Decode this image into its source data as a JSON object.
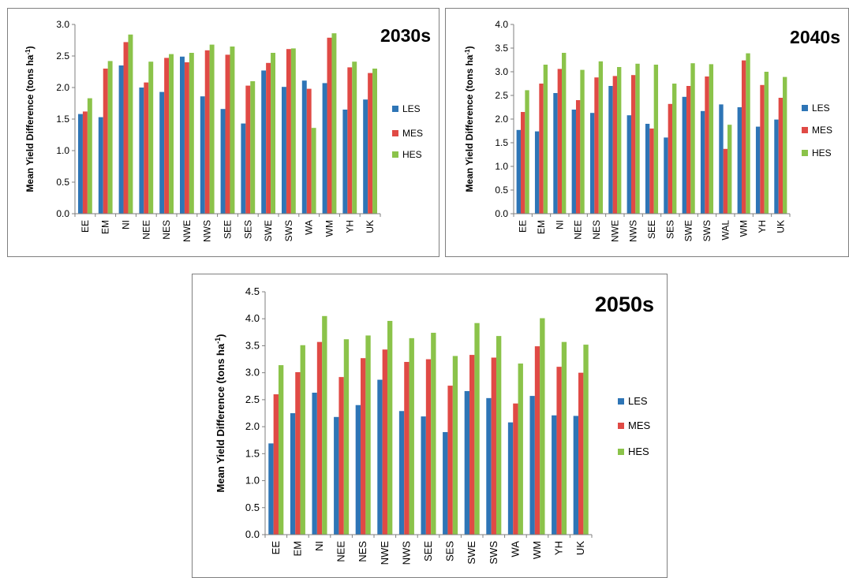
{
  "colors": {
    "LES": "#2e75b6",
    "MES": "#e04a45",
    "HES": "#8bc34a"
  },
  "chart_data": [
    {
      "type": "bar",
      "title": "2030s",
      "ylabel": "Mean Yield Difference (tons ha",
      "ylabel_sup": "-1",
      "ylabel_end": ")",
      "ylim": [
        0,
        3.0
      ],
      "yticks": [
        "0.0",
        "0.5",
        "1.0",
        "1.5",
        "2.0",
        "2.5",
        "3.0"
      ],
      "categories": [
        "EE",
        "EM",
        "NI",
        "NEE",
        "NES",
        "NWE",
        "NWS",
        "SEE",
        "SES",
        "SWE",
        "SWS",
        "WA",
        "WM",
        "YH",
        "UK"
      ],
      "series": [
        {
          "name": "LES",
          "values": [
            1.58,
            1.53,
            2.35,
            2.0,
            1.93,
            2.49,
            1.86,
            1.66,
            1.43,
            2.27,
            2.01,
            2.11,
            2.07,
            1.65,
            1.81
          ]
        },
        {
          "name": "MES",
          "values": [
            1.62,
            2.3,
            2.72,
            2.08,
            2.47,
            2.4,
            2.59,
            2.52,
            2.03,
            2.39,
            2.61,
            1.98,
            2.79,
            2.32,
            2.23
          ]
        },
        {
          "name": "HES",
          "values": [
            1.83,
            2.42,
            2.84,
            2.41,
            2.53,
            2.55,
            2.68,
            2.65,
            2.1,
            2.55,
            2.62,
            1.36,
            2.86,
            2.41,
            2.3
          ]
        }
      ],
      "legend": [
        "LES",
        "MES",
        "HES"
      ],
      "legend_position": "right",
      "grid": false
    },
    {
      "type": "bar",
      "title": "2040s",
      "ylabel": "Mean Yield Difference (tons ha",
      "ylabel_sup": "-1",
      "ylabel_end": ")",
      "ylim": [
        0,
        4.0
      ],
      "yticks": [
        "0.0",
        "0.5",
        "1.0",
        "1.5",
        "2.0",
        "2.5",
        "3.0",
        "3.5",
        "4.0"
      ],
      "categories": [
        "EE",
        "EM",
        "NI",
        "NEE",
        "NES",
        "NWE",
        "NWS",
        "SEE",
        "SES",
        "SWE",
        "SWS",
        "WAL",
        "WM",
        "YH",
        "UK"
      ],
      "series": [
        {
          "name": "LES",
          "values": [
            1.77,
            1.74,
            2.55,
            2.2,
            2.13,
            2.7,
            2.08,
            1.9,
            1.61,
            2.47,
            2.17,
            2.31,
            2.25,
            1.84,
            1.99
          ]
        },
        {
          "name": "MES",
          "values": [
            2.15,
            2.75,
            3.06,
            2.4,
            2.88,
            2.91,
            2.93,
            1.8,
            2.32,
            2.7,
            2.9,
            1.37,
            3.24,
            2.72,
            2.45
          ]
        },
        {
          "name": "HES",
          "values": [
            2.61,
            3.15,
            3.4,
            3.04,
            3.22,
            3.1,
            3.17,
            3.15,
            2.75,
            3.18,
            3.16,
            1.88,
            3.39,
            3.0,
            2.89
          ]
        }
      ],
      "legend": [
        "LES",
        "MES",
        "HES"
      ],
      "legend_position": "right",
      "grid": false
    },
    {
      "type": "bar",
      "title": "2050s",
      "ylabel": "Mean Yield Difference (tons ha",
      "ylabel_sup": "-1",
      "ylabel_end": ")",
      "ylim": [
        0,
        4.5
      ],
      "yticks": [
        "0.0",
        "0.5",
        "1.0",
        "1.5",
        "2.0",
        "2.5",
        "3.0",
        "3.5",
        "4.0",
        "4.5"
      ],
      "categories": [
        "EE",
        "EM",
        "NI",
        "NEE",
        "NES",
        "NWE",
        "NWS",
        "SEE",
        "SES",
        "SWE",
        "SWS",
        "WA",
        "WM",
        "YH",
        "UK"
      ],
      "series": [
        {
          "name": "LES",
          "values": [
            1.69,
            2.25,
            2.63,
            2.18,
            2.4,
            2.87,
            2.29,
            2.19,
            1.9,
            2.66,
            2.53,
            2.08,
            2.57,
            2.21,
            2.2
          ]
        },
        {
          "name": "MES",
          "values": [
            2.6,
            3.01,
            3.57,
            2.92,
            3.27,
            3.43,
            3.2,
            3.25,
            2.76,
            3.33,
            3.28,
            2.43,
            3.49,
            3.11,
            3.0
          ]
        },
        {
          "name": "HES",
          "values": [
            3.14,
            3.51,
            4.05,
            3.62,
            3.69,
            3.96,
            3.64,
            3.74,
            3.31,
            3.92,
            3.68,
            3.17,
            4.01,
            3.57,
            3.52
          ]
        }
      ],
      "legend": [
        "LES",
        "MES",
        "HES"
      ],
      "legend_position": "right",
      "grid": false
    }
  ]
}
